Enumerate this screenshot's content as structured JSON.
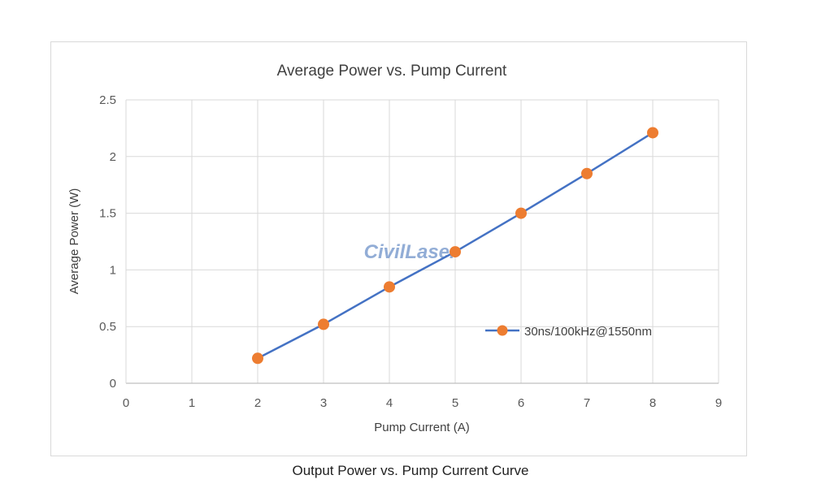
{
  "chart_data": {
    "type": "line",
    "title": "Average Power vs. Pump Current",
    "xlabel": "Pump Current (A)",
    "ylabel": "Average Power (W)",
    "xlim": [
      0,
      9
    ],
    "ylim": [
      0,
      2.5
    ],
    "x_ticks": [
      "0",
      "1",
      "2",
      "3",
      "4",
      "5",
      "6",
      "7",
      "8",
      "9"
    ],
    "y_ticks": [
      "0",
      "0.5",
      "1",
      "1.5",
      "2",
      "2.5"
    ],
    "grid": true,
    "legend_position": "right",
    "series": [
      {
        "name": "30ns/100kHz@1550nm",
        "x": [
          2,
          3,
          4,
          5,
          6,
          7,
          8
        ],
        "y": [
          0.22,
          0.52,
          0.85,
          1.16,
          1.5,
          1.85,
          2.21
        ],
        "line_color": "#4472c4",
        "marker_color": "#ed7d31"
      }
    ]
  },
  "watermark": "CivilLaser",
  "caption": "Output Power vs. Pump Current Curve"
}
